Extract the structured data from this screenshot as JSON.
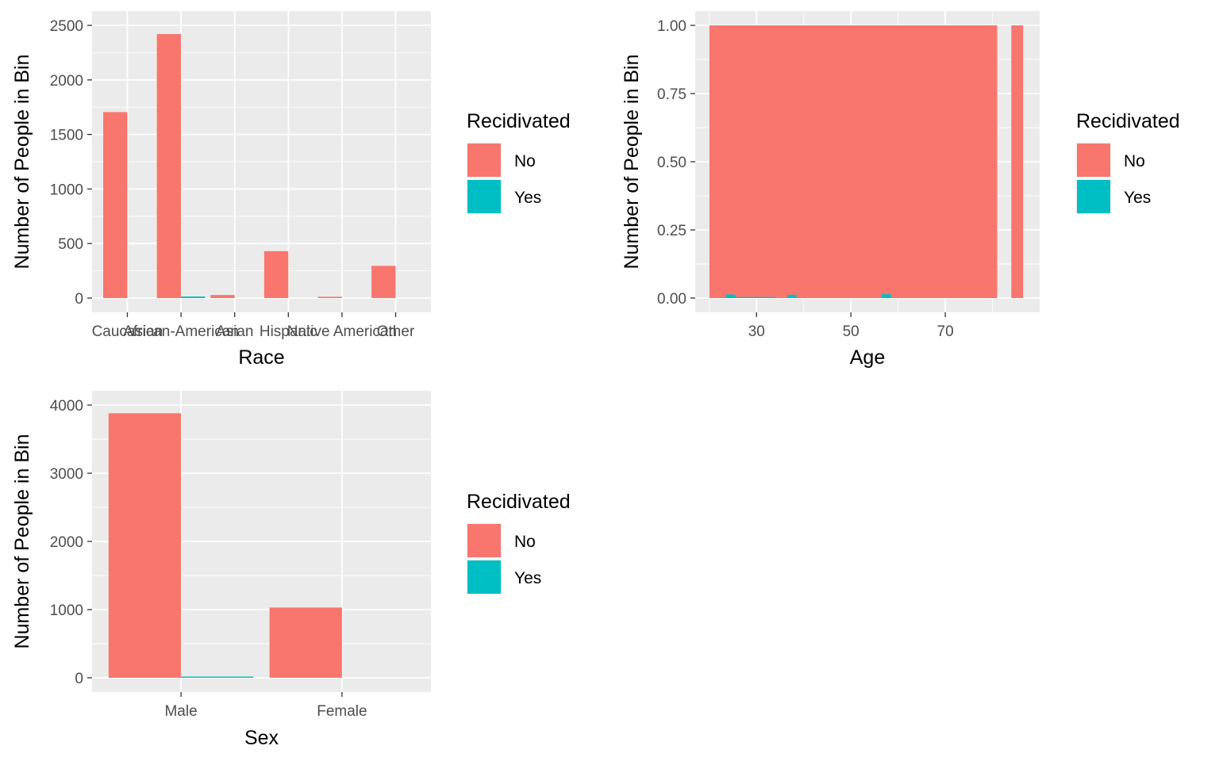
{
  "colors": {
    "no": "#F8766D",
    "yes": "#00BFC4",
    "panel": "#EBEBEB",
    "grid": "#FFFFFF"
  },
  "chart_data": [
    {
      "type": "bar",
      "xlabel": "Race",
      "ylabel": "Number of People in Bin",
      "categories": [
        "Caucasian",
        "African-American",
        "Asian",
        "Hispanic",
        "Native American",
        "Other"
      ],
      "ylim": [
        -130,
        2500
      ],
      "yticks": [
        0,
        500,
        1000,
        1500,
        2000,
        2500
      ],
      "position": "dodge",
      "series": [
        {
          "name": "No",
          "color": "#F8766D",
          "values": [
            1705,
            2420,
            28,
            430,
            12,
            295
          ]
        },
        {
          "name": "Yes",
          "color": "#00BFC4",
          "values": [
            0,
            14,
            0,
            0,
            0,
            0
          ]
        }
      ],
      "legend": {
        "title": "Recidivated",
        "entries": [
          "No",
          "Yes"
        ],
        "placement": "right"
      },
      "grid": true
    },
    {
      "type": "bar",
      "xlabel": "Age",
      "ylabel": "Number of People in Bin",
      "x_type": "continuous",
      "xlim": [
        17,
        90
      ],
      "xticks": [
        30,
        50,
        70
      ],
      "ylim": [
        -0.05,
        1.05
      ],
      "yticks": [
        "0.00",
        "0.25",
        "0.50",
        "0.75",
        "1.00"
      ],
      "position": "fill",
      "series": [
        {
          "name": "No",
          "color": "#F8766D",
          "bars": [
            {
              "x0": 20,
              "x1": 81,
              "y0": 0,
              "y1": 1
            },
            {
              "x0": 84,
              "x1": 86.5,
              "y0": 0,
              "y1": 1
            }
          ]
        },
        {
          "name": "Yes",
          "color": "#00BFC4",
          "bars": [
            {
              "x0": 23.5,
              "x1": 25.5,
              "y0": 0,
              "y1": 0.013
            },
            {
              "x0": 25.5,
              "x1": 34,
              "y0": 0,
              "y1": 0.004
            },
            {
              "x0": 36.5,
              "x1": 38.5,
              "y0": 0,
              "y1": 0.012
            },
            {
              "x0": 56.5,
              "x1": 58.5,
              "y0": 0,
              "y1": 0.014
            }
          ]
        }
      ],
      "legend": {
        "title": "Recidivated",
        "entries": [
          "No",
          "Yes"
        ],
        "placement": "right"
      },
      "grid": true
    },
    {
      "type": "bar",
      "xlabel": "Sex",
      "ylabel": "Number of People in Bin",
      "categories": [
        "Male",
        "Female"
      ],
      "ylim": [
        -180,
        4000
      ],
      "yticks": [
        0,
        1000,
        2000,
        3000,
        4000
      ],
      "position": "dodge",
      "series": [
        {
          "name": "No",
          "color": "#F8766D",
          "values": [
            3880,
            1030
          ]
        },
        {
          "name": "Yes",
          "color": "#00BFC4",
          "values": [
            14,
            0
          ]
        }
      ],
      "legend": {
        "title": "Recidivated",
        "entries": [
          "No",
          "Yes"
        ],
        "placement": "right"
      },
      "grid": true
    }
  ]
}
